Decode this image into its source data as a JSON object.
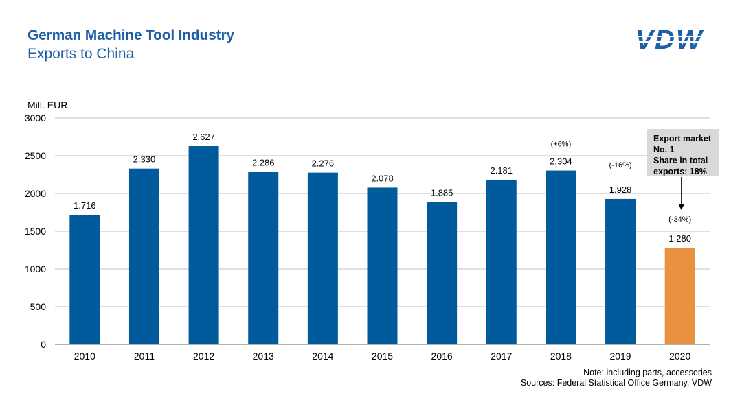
{
  "header": {
    "title": "German Machine Tool Industry",
    "subtitle": "Exports to China"
  },
  "logo": {
    "text": "VDW",
    "color": "#1f5fa6"
  },
  "callout": {
    "lines": [
      "Export market",
      "No. 1",
      "Share in total",
      "exports: 18%"
    ]
  },
  "footnotes": {
    "note": "Note: including parts, accessories",
    "sources": "Sources: Federal Statistical Office Germany, VDW"
  },
  "chart_data": {
    "type": "bar",
    "ylabel": "Mill. EUR",
    "ylim": [
      0,
      3000
    ],
    "yticks": [
      "0",
      "500",
      "1000",
      "1500",
      "2000",
      "2500",
      "3000"
    ],
    "ytick_values": [
      0,
      500,
      1000,
      1500,
      2000,
      2500,
      3000
    ],
    "grid": true,
    "categories": [
      "2010",
      "2011",
      "2012",
      "2013",
      "2014",
      "2015",
      "2016",
      "2017",
      "2018",
      "2019",
      "2020"
    ],
    "values": [
      1716,
      2330,
      2627,
      2286,
      2276,
      2078,
      1885,
      2181,
      2304,
      1928,
      1280
    ],
    "value_labels": [
      "1.716",
      "2.330",
      "2.627",
      "2.286",
      "2.276",
      "2.078",
      "1.885",
      "2.181",
      "2.304",
      "1.928",
      "1.280"
    ],
    "changes": {
      "2018": "(+6%)",
      "2019": "(-16%)",
      "2020": "(-34%)"
    },
    "bar_color": "#005a9c",
    "highlight_color": "#e8913f",
    "highlight_category": "2020"
  }
}
